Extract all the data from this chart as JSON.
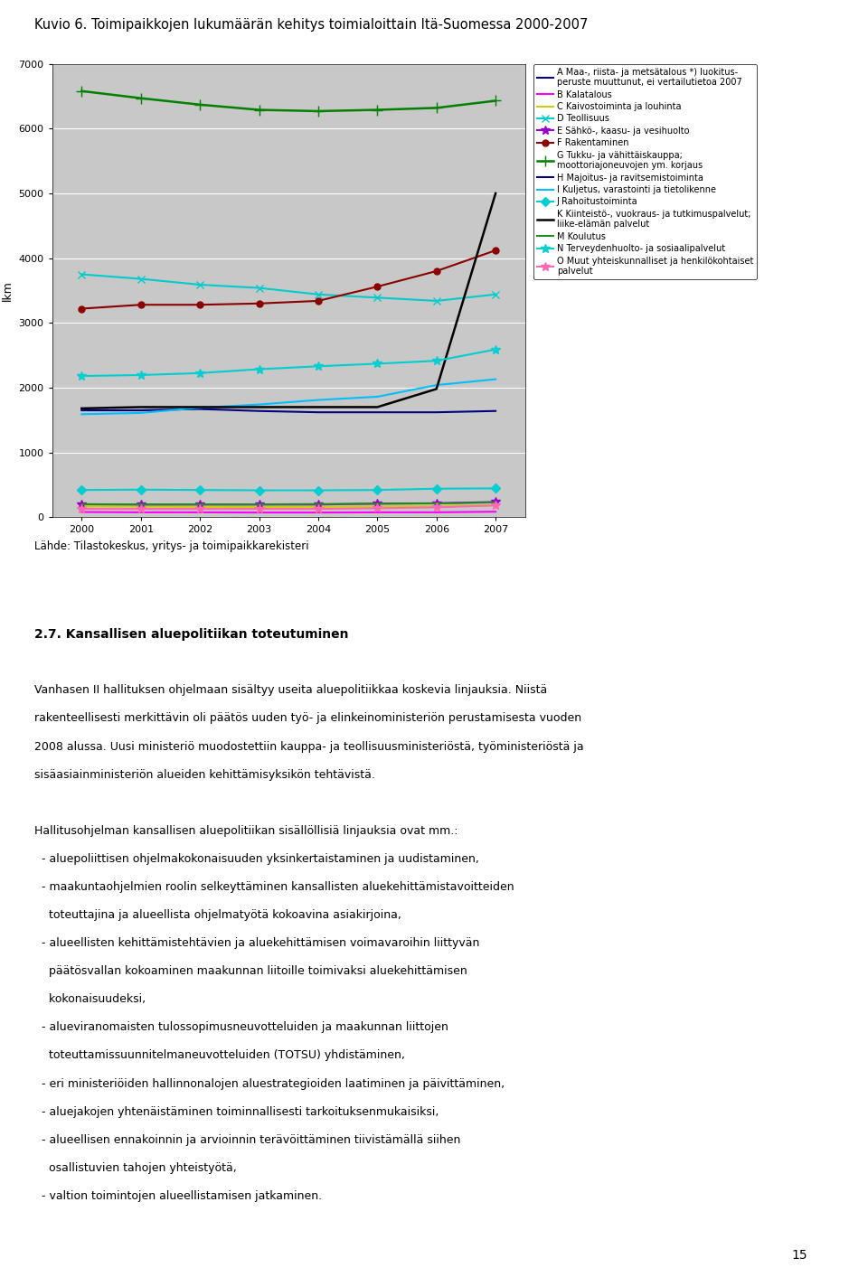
{
  "title": "Kuvio 6. Toimipaikkojen lukumäärän kehitys toimialoittain Itä-Suomessa 2000-2007",
  "ylabel": "lkm",
  "years": [
    2000,
    2001,
    2002,
    2003,
    2004,
    2005,
    2006,
    2007
  ],
  "ylim": [
    0,
    7000
  ],
  "yticks": [
    0,
    1000,
    2000,
    3000,
    4000,
    5000,
    6000,
    7000
  ],
  "source": "Lähde: Tilastokeskus, yritys- ja toimipaikkarekisteri",
  "series": [
    {
      "label": "A Maa-, riista- ja metsätalous *) luokitus-\nperuste muuttunut, ei vertailutietoa 2007",
      "color": "#00008B",
      "marker": "None",
      "ms": 5,
      "lw": 1.5,
      "ls": "-",
      "values": [
        null,
        null,
        null,
        null,
        null,
        null,
        null,
        null
      ]
    },
    {
      "label": "B Kalatalous",
      "color": "#FF00FF",
      "marker": "None",
      "ms": 5,
      "lw": 1.5,
      "ls": "-",
      "values": [
        80,
        75,
        75,
        72,
        72,
        75,
        75,
        85
      ]
    },
    {
      "label": "C Kaivostoiminta ja louhinta",
      "color": "#CCCC00",
      "marker": "None",
      "ms": 5,
      "lw": 1.5,
      "ls": "-",
      "values": [
        170,
        165,
        160,
        158,
        160,
        165,
        170,
        185
      ]
    },
    {
      "label": "D Teollisuus",
      "color": "#00CCCC",
      "marker": "x",
      "ms": 6,
      "lw": 1.5,
      "ls": "-",
      "values": [
        3750,
        3680,
        3590,
        3540,
        3440,
        3390,
        3340,
        3440
      ]
    },
    {
      "label": "E Sähkö-, kaasu- ja vesihuolto",
      "color": "#9900CC",
      "marker": "*",
      "ms": 7,
      "lw": 1.5,
      "ls": "-",
      "values": [
        200,
        195,
        195,
        195,
        195,
        210,
        215,
        235
      ]
    },
    {
      "label": "F Rakentaminen",
      "color": "#8B0000",
      "marker": "o",
      "ms": 5,
      "lw": 1.5,
      "ls": "-",
      "values": [
        3220,
        3280,
        3280,
        3300,
        3340,
        3560,
        3800,
        4120
      ]
    },
    {
      "label": "G Tukku- ja vähittäiskauppa;\nmoottoriajoneuvojen ym. korjaus",
      "color": "#008000",
      "marker": "+",
      "ms": 9,
      "lw": 1.8,
      "ls": "-",
      "values": [
        6580,
        6470,
        6370,
        6290,
        6270,
        6290,
        6320,
        6430
      ]
    },
    {
      "label": "H Majoitus- ja ravitsemistoiminta",
      "color": "#000080",
      "marker": "None",
      "ms": 5,
      "lw": 1.5,
      "ls": "-",
      "values": [
        1650,
        1650,
        1670,
        1640,
        1620,
        1620,
        1620,
        1640
      ]
    },
    {
      "label": "I Kuljetus, varastointi ja tietolikenne",
      "color": "#00BFFF",
      "marker": "None",
      "ms": 5,
      "lw": 1.5,
      "ls": "-",
      "values": [
        1590,
        1610,
        1690,
        1740,
        1810,
        1860,
        2040,
        2130
      ]
    },
    {
      "label": "J Rahoitustoiminta",
      "color": "#00CED1",
      "marker": "D",
      "ms": 5,
      "lw": 1.5,
      "ls": "-",
      "values": [
        420,
        425,
        420,
        415,
        415,
        420,
        440,
        445
      ]
    },
    {
      "label": "K Kiinteistö-, vuokraus- ja tutkimuspalvelut;\nliike-elämän palvelut",
      "color": "#000000",
      "marker": "None",
      "ms": 5,
      "lw": 1.8,
      "ls": "-",
      "values": [
        1680,
        1700,
        1700,
        1700,
        1700,
        1700,
        1980,
        5000
      ]
    },
    {
      "label": "M Koulutus",
      "color": "#228B22",
      "marker": "None",
      "ms": 5,
      "lw": 1.5,
      "ls": "-",
      "values": [
        200,
        198,
        198,
        198,
        202,
        208,
        213,
        228
      ]
    },
    {
      "label": "N Terveydenhuolto- ja sosiaalipalvelut",
      "color": "#00CED1",
      "marker": "*",
      "ms": 7,
      "lw": 1.5,
      "ls": "-",
      "values": [
        2180,
        2195,
        2225,
        2285,
        2330,
        2370,
        2415,
        2590
      ]
    },
    {
      "label": "O Muut yhteiskunnalliset ja henkilökohtaiset\npalvelut",
      "color": "#FF69B4",
      "marker": "*",
      "ms": 7,
      "lw": 1.5,
      "ls": "-",
      "values": [
        130,
        128,
        128,
        128,
        128,
        138,
        152,
        182
      ]
    }
  ],
  "background_color": "#C8C8C8",
  "fig_background": "#FFFFFF",
  "body_text": [
    "",
    "2.7. Kansallisen aluepolitiikan toteutuminen",
    "",
    "Vanhasen II hallituksen ohjelmaan sisältyy useita aluepolitiikkaa koskevia linjauksia. Niistä",
    "rakenteellisesti merkittävin oli päätös uuden työ- ja elinkeinoministeriön perustamisesta vuoden",
    "2008 alussa. Uusi ministeriö muodostettiin kauppa- ja teollisuusministeriöstä, työministeriöstä ja",
    "sisäasiainministeriön alueiden kehittämisyksikön tehtävistä.",
    "",
    "Hallitusohjelman kansallisen aluepolitiikan sisällöllisiä linjauksia ovat mm.:",
    "  - aluepoliittisen ohjelmakokonaisuuden yksinkertaistaminen ja uudistaminen,",
    "  - maakuntaohjelmien roolin selkeyttäminen kansallisten aluekehittämistavoitteiden",
    "    toteuttajina ja alueellista ohjelmatyötä kokoavina asiakirjoina,",
    "  - alueellisten kehittämistehtävien ja aluekehittämisen voimavaroihin liittyvän",
    "    päätösvallan kokoaminen maakunnan liitoille toimivaksi aluekehittämisen",
    "    kokonaisuudeksi,",
    "  - alueviranomaisten tulossopimusneuvotteluiden ja maakunnan liittojen",
    "    toteuttamissuunnitelmaneuvotteluiden (TOTSU) yhdistäminen,",
    "  - eri ministeriöiden hallinnonalojen aluestrategioiden laatiminen ja päivittäminen,",
    "  - aluejakojen yhtenäistäminen toiminnallisesti tarkoituksenmukaisiksi,",
    "  - alueellisen ennakoinnin ja arvioinnin terävöittäminen tiivistämällä siihen",
    "    osallistuvien tahojen yhteistyötä,",
    "  - valtion toimintojen alueellistamisen jatkaminen."
  ],
  "page_number": "15"
}
